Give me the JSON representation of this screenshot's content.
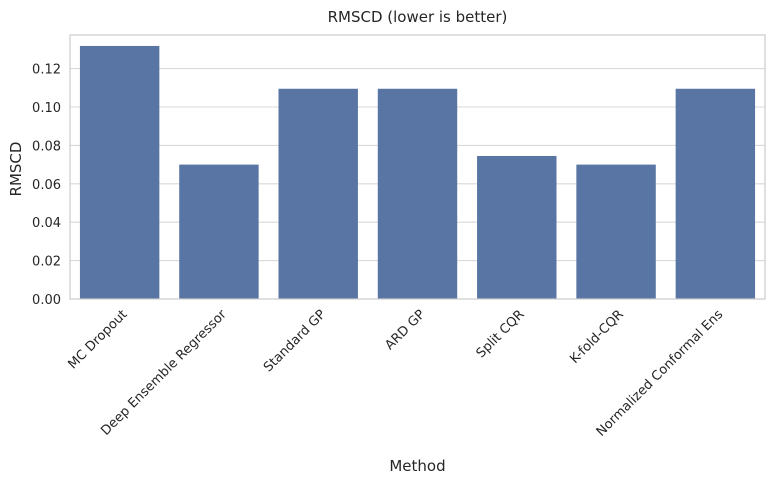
{
  "chart_data": {
    "type": "bar",
    "title": "RMSCD (lower is better)",
    "xlabel": "Method",
    "ylabel": "RMSCD",
    "categories": [
      "MC Dropout",
      "Deep Ensemble Regressor",
      "Standard GP",
      "ARD GP",
      "Split CQR",
      "K-fold-CQR",
      "Normalized Conformal Ens"
    ],
    "values": [
      0.1318,
      0.07,
      0.1095,
      0.1095,
      0.0745,
      0.07,
      0.1095
    ],
    "ylim": [
      0,
      0.1375
    ],
    "yticks": [
      0.0,
      0.02,
      0.04,
      0.06,
      0.08,
      0.1,
      0.12
    ],
    "ytick_labels": [
      "0.00",
      "0.02",
      "0.04",
      "0.06",
      "0.08",
      "0.10",
      "0.12"
    ],
    "grid": "horizontal",
    "bar_color": "#5875a4"
  }
}
